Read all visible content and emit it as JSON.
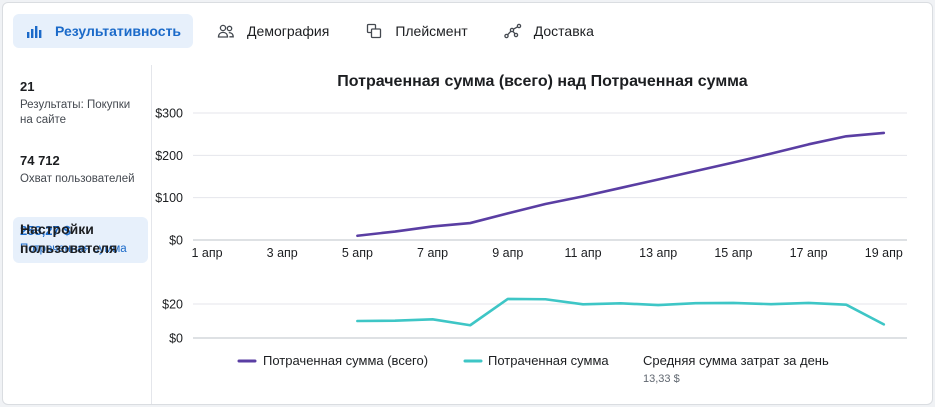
{
  "tabs": [
    {
      "label": "Результативность",
      "icon": "bar-chart-icon",
      "active": true
    },
    {
      "label": "Демография",
      "icon": "people-icon",
      "active": false
    },
    {
      "label": "Плейсмент",
      "icon": "placement-icon",
      "active": false
    },
    {
      "label": "Доставка",
      "icon": "delivery-icon",
      "active": false
    }
  ],
  "sidebar": {
    "metrics": [
      {
        "value": "21",
        "label": "Результаты: Покупки на сайте"
      },
      {
        "value": "74 712",
        "label": "Охват пользователей"
      },
      {
        "value": "253,27 $",
        "label": "Потраченная сумма",
        "active": true
      }
    ],
    "settings_label": "Настройки пользователя"
  },
  "colors": {
    "accent": "#1b6ac9",
    "cumulative": "#5a3ea3",
    "daily": "#3ec6c6"
  },
  "chart_data": {
    "title": "Потраченная сумма (всего) над Потраченная сумма",
    "type": "line",
    "x": [
      "1 апр",
      "2 апр",
      "3 апр",
      "4 апр",
      "5 апр",
      "6 апр",
      "7 апр",
      "8 апр",
      "9 апр",
      "10 апр",
      "11 апр",
      "12 апр",
      "13 апр",
      "14 апр",
      "15 апр",
      "16 апр",
      "17 апр",
      "18 апр",
      "19 апр"
    ],
    "x_tick_labels": [
      "1 апр",
      "3 апр",
      "5 апр",
      "7 апр",
      "9 апр",
      "11 апр",
      "13 апр",
      "15 апр",
      "17 апр",
      "19 апр"
    ],
    "top": {
      "name": "Потраченная сумма (всего)",
      "y_ticks": [
        "$0",
        "$100",
        "$200",
        "$300"
      ],
      "ylim": [
        0,
        300
      ],
      "values": [
        null,
        null,
        null,
        null,
        10,
        20,
        32,
        40,
        63,
        85,
        103,
        123,
        143,
        163,
        183,
        204,
        226,
        245,
        253
      ]
    },
    "bottom": {
      "name": "Потраченная сумма",
      "y_ticks": [
        "$0",
        "$20"
      ],
      "ylim": [
        0,
        20
      ],
      "values": [
        null,
        null,
        null,
        null,
        10,
        10.2,
        11,
        7.5,
        23,
        22.8,
        19.8,
        20.4,
        19.4,
        20.5,
        20.6,
        19.9,
        20.6,
        19.6,
        8
      ]
    },
    "legend": [
      {
        "label": "Потраченная сумма (всего)",
        "series": "cumulative"
      },
      {
        "label": "Потраченная сумма",
        "series": "daily"
      },
      {
        "label": "Средняя сумма затрат за день",
        "sub": "13,33 $"
      }
    ]
  }
}
